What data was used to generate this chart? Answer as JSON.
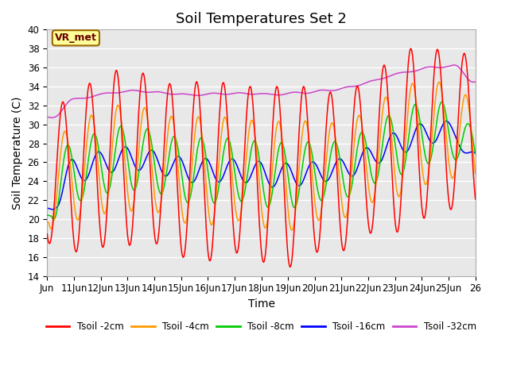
{
  "title": "Soil Temperatures Set 2",
  "xlabel": "Time",
  "ylabel": "Soil Temperature (C)",
  "ylim": [
    14,
    40
  ],
  "yticks": [
    14,
    16,
    18,
    20,
    22,
    24,
    26,
    28,
    30,
    32,
    34,
    36,
    38,
    40
  ],
  "x_tick_labels": [
    "Jun",
    "11Jun",
    "12Jun",
    "13Jun",
    "14Jun",
    "15Jun",
    "16Jun",
    "17Jun",
    "18Jun",
    "19Jun",
    "20Jun",
    "21Jun",
    "22Jun",
    "23Jun",
    "24Jun",
    "25Jun",
    "26"
  ],
  "colors": {
    "2cm": "#ff0000",
    "4cm": "#ff9900",
    "8cm": "#00cc00",
    "16cm": "#0000ff",
    "32cm": "#cc44cc"
  },
  "legend_labels": [
    "Tsoil -2cm",
    "Tsoil -4cm",
    "Tsoil -8cm",
    "Tsoil -16cm",
    "Tsoil -32cm"
  ],
  "annotation_text": "VR_met",
  "annotation_bbox_facecolor": "#ffff99",
  "annotation_bbox_edgecolor": "#996600",
  "background_color": "#e8e8e8",
  "grid_color": "#ffffff",
  "title_fontsize": 13,
  "axis_label_fontsize": 10,
  "tick_fontsize": 8.5,
  "peaks_2cm": [
    31.5,
    17.5,
    33.0,
    16.5,
    35.3,
    17.0,
    36.0,
    17.2,
    35.0,
    17.5,
    33.8,
    16.0,
    35.0,
    15.5,
    34.0,
    16.5,
    34.0,
    15.5,
    34.0,
    14.8,
    34.0,
    16.5,
    33.0,
    16.5,
    34.8,
    18.5,
    37.3,
    18.5,
    38.5,
    20.0,
    37.5,
    21.0
  ],
  "base_mean": 20.5,
  "base_trend_rate": 0.15,
  "damping_depth_daily": 8.0,
  "phase_lag_per_cm": 0.25
}
